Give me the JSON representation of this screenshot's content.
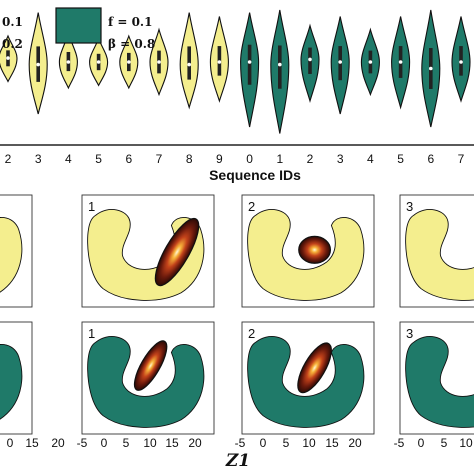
{
  "chart_data": [
    {
      "type": "violin",
      "xlabel": "Sequence IDs",
      "legend": [
        {
          "label_line1": "0.1",
          "label_line2": "0.2",
          "color": "#f4ee8e"
        },
        {
          "label_line1": "f = 0.1",
          "label_line2": "β = 0.8",
          "color": "#1f7a69"
        }
      ],
      "tick_labels": [
        "2",
        "3",
        "4",
        "5",
        "6",
        "7",
        "8",
        "9",
        "0",
        "1",
        "2",
        "3",
        "4",
        "5",
        "6",
        "7"
      ],
      "series": [
        {
          "color": "#f4ee8e",
          "values": [
            {
              "id": "2",
              "ymin": 0.45,
              "ymax": 0.8,
              "median": 0.63
            },
            {
              "id": "3",
              "ymin": 0.2,
              "ymax": 0.98,
              "median": 0.58
            },
            {
              "id": "4",
              "ymin": 0.4,
              "ymax": 0.82,
              "median": 0.6
            },
            {
              "id": "5",
              "ymin": 0.42,
              "ymax": 0.78,
              "median": 0.6
            },
            {
              "id": "6",
              "ymin": 0.4,
              "ymax": 0.8,
              "median": 0.6
            },
            {
              "id": "7",
              "ymin": 0.35,
              "ymax": 0.85,
              "median": 0.6
            },
            {
              "id": "8",
              "ymin": 0.25,
              "ymax": 0.98,
              "median": 0.58
            },
            {
              "id": "9",
              "ymin": 0.3,
              "ymax": 0.95,
              "median": 0.6
            }
          ]
        },
        {
          "color": "#1f7a69",
          "values": [
            {
              "id": "0",
              "ymin": 0.1,
              "ymax": 0.98,
              "median": 0.6
            },
            {
              "id": "1",
              "ymin": 0.05,
              "ymax": 1.0,
              "median": 0.58
            },
            {
              "id": "2",
              "ymin": 0.3,
              "ymax": 0.88,
              "median": 0.62
            },
            {
              "id": "3",
              "ymin": 0.2,
              "ymax": 0.95,
              "median": 0.6
            },
            {
              "id": "4",
              "ymin": 0.35,
              "ymax": 0.85,
              "median": 0.6
            },
            {
              "id": "5",
              "ymin": 0.25,
              "ymax": 0.95,
              "median": 0.6
            },
            {
              "id": "6",
              "ymin": 0.1,
              "ymax": 1.0,
              "median": 0.55
            },
            {
              "id": "7",
              "ymin": 0.3,
              "ymax": 0.95,
              "median": 0.6
            }
          ]
        }
      ]
    },
    {
      "type": "density",
      "xlabel": "Z1",
      "x_tick_labels": [
        "0",
        "15",
        "20",
        "-5",
        "0",
        "5",
        "10",
        "15",
        "20",
        "-5",
        "0",
        "5",
        "10",
        "15",
        "20",
        "-5",
        "0",
        "5",
        "10"
      ],
      "panel_labels": [
        "1",
        "2",
        "3"
      ],
      "rows": [
        {
          "fill": "#f4ee8e",
          "panels": [
            "0",
            "1",
            "2",
            "3"
          ]
        },
        {
          "fill": "#1f7a69",
          "panels": [
            "0",
            "1",
            "2",
            "3"
          ]
        }
      ]
    }
  ]
}
